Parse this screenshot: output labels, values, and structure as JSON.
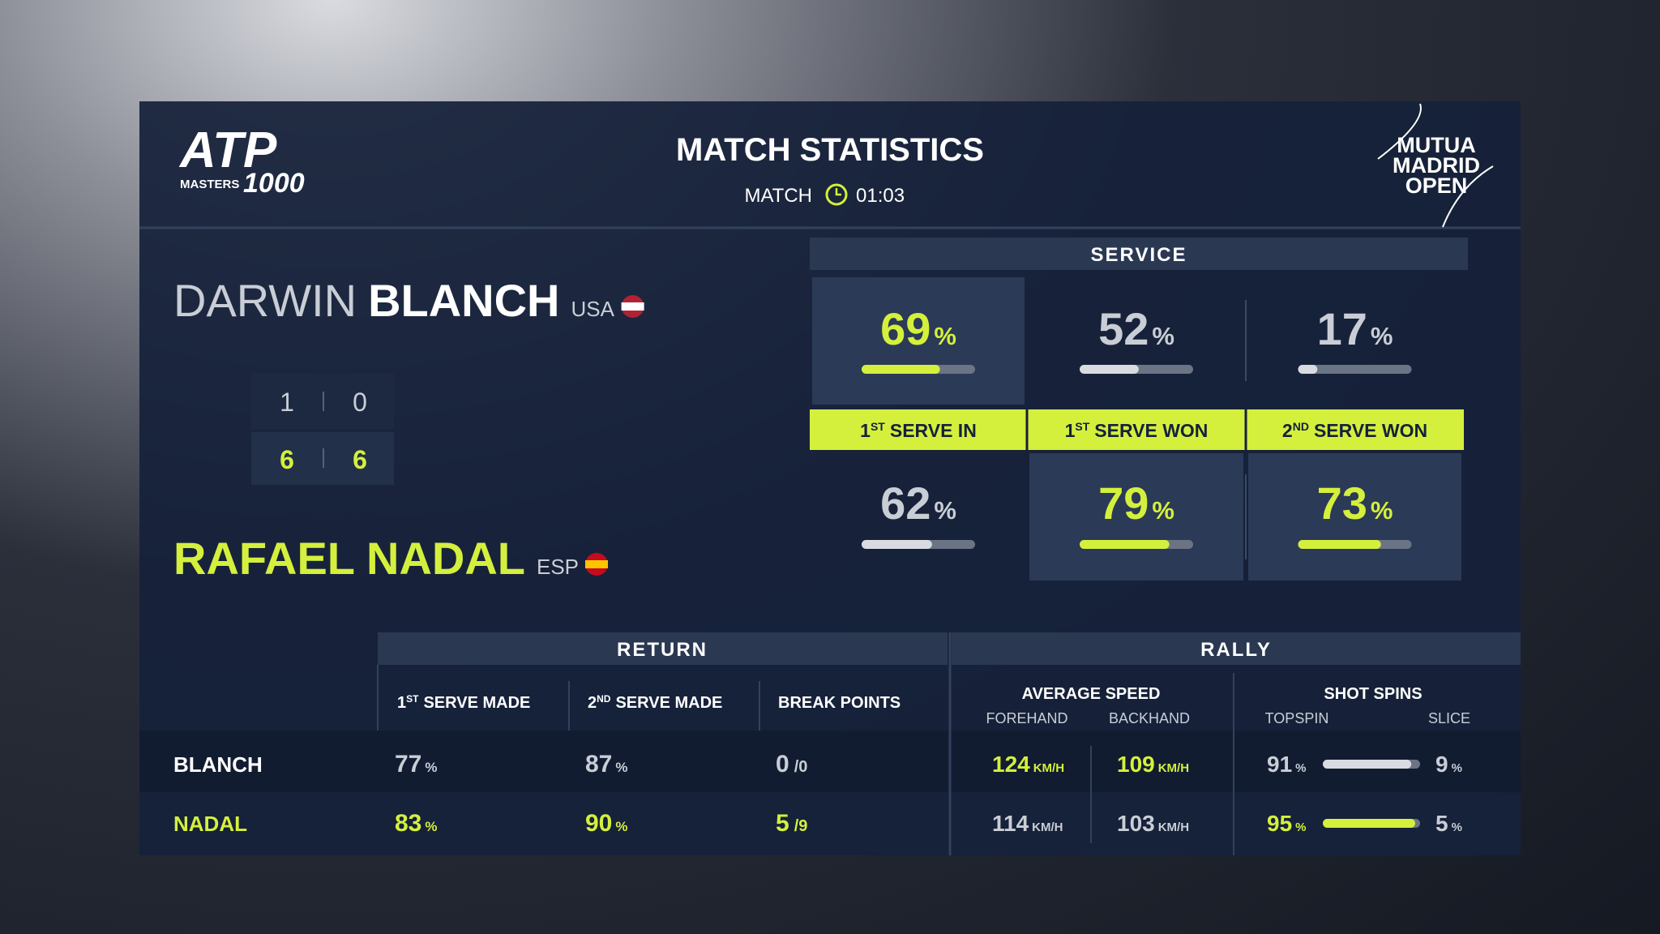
{
  "header": {
    "logo_left": {
      "brand": "ATP",
      "sub": "MASTERS",
      "num": "1000"
    },
    "title": "MATCH STATISTICS",
    "clock_label": "MATCH",
    "clock_time": "01:03",
    "logo_right": [
      "MUTUA",
      "MADRID",
      "OPEN"
    ]
  },
  "players": [
    {
      "first": "DARWIN",
      "last": "BLANCH",
      "country": "USA",
      "sets": 1,
      "games": 6,
      "highlight": false
    },
    {
      "first": "RAFAEL",
      "last": "NADAL",
      "country": "ESP",
      "sets": 0,
      "games": 6,
      "highlight": true
    }
  ],
  "service": {
    "title": "SERVICE",
    "xlim": [
      0,
      100
    ],
    "stats": [
      {
        "label": {
          "num": "1",
          "sup": "ST",
          "text": "SERVE IN"
        },
        "values": [
          {
            "value": 69,
            "unit": "%",
            "highlight": true
          },
          {
            "value": 62,
            "unit": "%",
            "highlight": false
          }
        ]
      },
      {
        "label": {
          "num": "1",
          "sup": "ST",
          "text": "SERVE WON"
        },
        "values": [
          {
            "value": 52,
            "unit": "%",
            "highlight": false
          },
          {
            "value": 79,
            "unit": "%",
            "highlight": true
          }
        ]
      },
      {
        "label": {
          "num": "2",
          "sup": "ND",
          "text": "SERVE WON"
        },
        "values": [
          {
            "value": 17,
            "unit": "%",
            "highlight": false
          },
          {
            "value": 73,
            "unit": "%",
            "highlight": true
          }
        ]
      }
    ]
  },
  "return": {
    "title": "RETURN",
    "columns": [
      {
        "num": "1",
        "sup": "ST",
        "text": "SERVE MADE"
      },
      {
        "num": "2",
        "sup": "ND",
        "text": "SERVE MADE"
      },
      {
        "text": "BREAK POINTS"
      }
    ],
    "rows": [
      {
        "player": "BLANCH",
        "highlight": false,
        "values": [
          {
            "value": 77,
            "unit": "%"
          },
          {
            "value": 87,
            "unit": "%"
          },
          {
            "value": 0,
            "sep": "/",
            "total": 0
          }
        ]
      },
      {
        "player": "NADAL",
        "highlight": true,
        "values": [
          {
            "value": 83,
            "unit": "%"
          },
          {
            "value": 90,
            "unit": "%"
          },
          {
            "value": 5,
            "sep": "/",
            "total": 9
          }
        ]
      }
    ]
  },
  "rally": {
    "title": "RALLY",
    "xlim": [
      0,
      100
    ],
    "groups": [
      {
        "title": "AVERAGE SPEED",
        "columns": [
          "FOREHAND",
          "BACKHAND"
        ]
      },
      {
        "title": "SHOT SPINS",
        "columns": [
          "TOPSPIN",
          "SLICE"
        ]
      }
    ],
    "rows": [
      {
        "speed": [
          {
            "value": 124,
            "unit": "KM/H",
            "highlight": true
          },
          {
            "value": 109,
            "unit": "KM/H",
            "highlight": true
          }
        ],
        "spin": [
          {
            "value": 91,
            "unit": "%",
            "highlight": false
          },
          {
            "value": 9,
            "unit": "%",
            "highlight": false
          }
        ]
      },
      {
        "speed": [
          {
            "value": 114,
            "unit": "KM/H",
            "highlight": false
          },
          {
            "value": 103,
            "unit": "KM/H",
            "highlight": false
          }
        ],
        "spin": [
          {
            "value": 95,
            "unit": "%",
            "highlight": true
          },
          {
            "value": 5,
            "unit": "%",
            "highlight": false
          }
        ]
      }
    ]
  }
}
